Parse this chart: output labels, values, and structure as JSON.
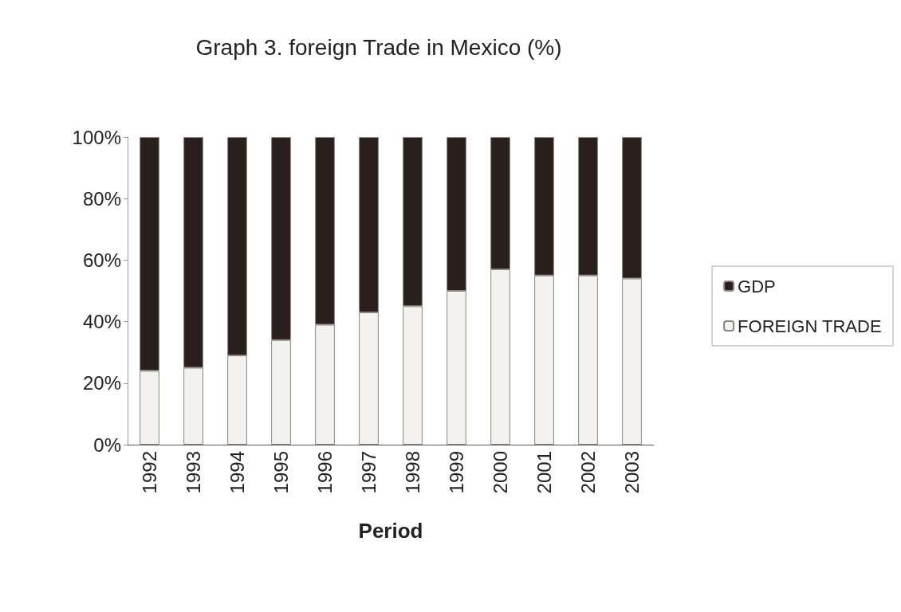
{
  "chart_data": {
    "type": "bar",
    "title": "Graph 3. foreign Trade in Mexico (%)",
    "xlabel": "Period",
    "categories": [
      "1992",
      "1993",
      "1994",
      "1995",
      "1996",
      "1997",
      "1998",
      "1999",
      "2000",
      "2001",
      "2002",
      "2003"
    ],
    "stacked": true,
    "series": [
      {
        "name": "FOREIGN TRADE",
        "color": "#f4f2ef",
        "values": [
          24,
          25,
          29,
          34,
          39,
          43,
          45,
          50,
          57,
          55,
          55,
          54
        ]
      },
      {
        "name": "GDP",
        "color": "#2a1f1c",
        "values": [
          76,
          75,
          71,
          66,
          61,
          57,
          55,
          50,
          43,
          45,
          45,
          46
        ]
      }
    ],
    "ylim": [
      0,
      100
    ],
    "yticks": [
      {
        "value": 0,
        "label": "0%"
      },
      {
        "value": 20,
        "label": "20%"
      },
      {
        "value": 40,
        "label": "40%"
      },
      {
        "value": 60,
        "label": "60%"
      },
      {
        "value": 80,
        "label": "80%"
      },
      {
        "value": 100,
        "label": "100%"
      }
    ],
    "grid": false,
    "legend": "right"
  }
}
